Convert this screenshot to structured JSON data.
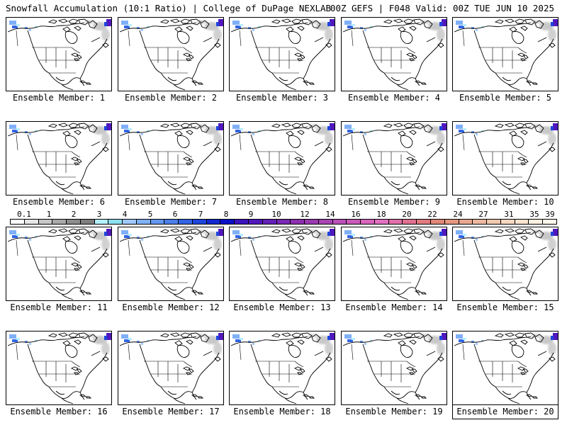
{
  "header": {
    "left": "Snowfall Accumulation (10:1 Ratio) | College of DuPage NEXLAB",
    "right": "00Z GEFS | F048 Valid: 00Z TUE JUN 10 2025"
  },
  "panels": [
    {
      "label": "Ensemble Member: 1"
    },
    {
      "label": "Ensemble Member: 2"
    },
    {
      "label": "Ensemble Member: 3"
    },
    {
      "label": "Ensemble Member: 4"
    },
    {
      "label": "Ensemble Member: 5"
    },
    {
      "label": "Ensemble Member: 6"
    },
    {
      "label": "Ensemble Member: 7"
    },
    {
      "label": "Ensemble Member: 8"
    },
    {
      "label": "Ensemble Member: 9"
    },
    {
      "label": "Ensemble Member: 10"
    },
    {
      "label": "Ensemble Member: 11"
    },
    {
      "label": "Ensemble Member: 12"
    },
    {
      "label": "Ensemble Member: 13"
    },
    {
      "label": "Ensemble Member: 14"
    },
    {
      "label": "Ensemble Member: 15"
    },
    {
      "label": "Ensemble Member: 16"
    },
    {
      "label": "Ensemble Member: 17"
    },
    {
      "label": "Ensemble Member: 18"
    },
    {
      "label": "Ensemble Member: 19"
    },
    {
      "label": "Ensemble Member: 20"
    }
  ],
  "colorbar": {
    "labels": [
      "0.1",
      "1",
      "2",
      "3",
      "4",
      "5",
      "6",
      "7",
      "8",
      "9",
      "10",
      "12",
      "14",
      "16",
      "18",
      "20",
      "22",
      "24",
      "27",
      "31",
      "35",
      "39"
    ],
    "colors": [
      "#ffffff",
      "#e6e6e6",
      "#c8c8c8",
      "#a9a9a9",
      "#8c8c8c",
      "#7f7f7f",
      "#b4f0ff",
      "#8ce0f0",
      "#a0c8ff",
      "#7fb0f8",
      "#6496f0",
      "#4a7ee8",
      "#3264e6",
      "#1e46dc",
      "#1428d2",
      "#0a10c8",
      "#3c14c0",
      "#5018bc",
      "#6420b8",
      "#7828b4",
      "#8c30b0",
      "#9a3ab0",
      "#a844b4",
      "#b850b8",
      "#c85ab8",
      "#d864bc",
      "#e070c0",
      "#e070a8",
      "#e07090",
      "#e07a80",
      "#e08878",
      "#e49880",
      "#e8a890",
      "#ecb8a0",
      "#f0c8b0",
      "#f4d8c0",
      "#f8e4d0",
      "#fcf0e0",
      "#fff8ec"
    ]
  }
}
